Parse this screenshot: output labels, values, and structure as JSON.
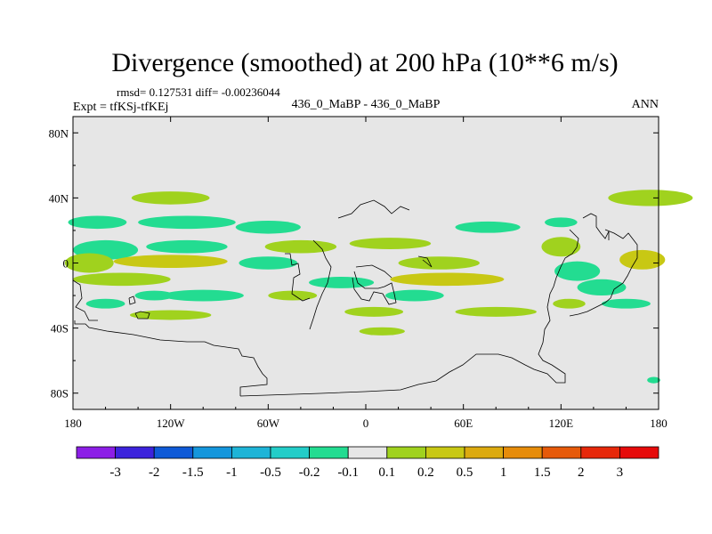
{
  "chart_data": {
    "type": "heatmap",
    "title": "Divergence (smoothed) at 200 hPa (10**6 m/s)",
    "stats_label": "rmsd= 0.127531  diff= -0.00236044",
    "left_label": "Expt = tfKSj-tfKEj",
    "center_label": "436_0_MaBP - 436_0_MaBP",
    "right_label": "ANN",
    "x_ticks": [
      "180",
      "120W",
      "60W",
      "0",
      "60E",
      "120E",
      "180"
    ],
    "y_ticks": [
      "80N",
      "40N",
      "0",
      "40S",
      "80S"
    ],
    "xlim": [
      -180,
      180
    ],
    "ylim": [
      -90,
      90
    ],
    "colorbar": {
      "colors": [
        "#8c1ee6",
        "#3c23dc",
        "#0f5ad7",
        "#1496dc",
        "#1eb4d7",
        "#23cdc8",
        "#23dc91",
        "#e6e6e6",
        "#a0d21e",
        "#c8c814",
        "#dcaa0f",
        "#e68c0a",
        "#e65a0a",
        "#e6280a",
        "#e60a0a"
      ],
      "labels": [
        "-3",
        "-2",
        "-1.5",
        "-1",
        "-0.5",
        "-0.2",
        "-0.1",
        "0.1",
        "0.2",
        "0.5",
        "1",
        "1.5",
        "2",
        "3"
      ]
    },
    "features": [
      {
        "lon": 175,
        "lat": 40,
        "rx": 26,
        "ry": 5,
        "color": "#a0d21e"
      },
      {
        "lon": -120,
        "lat": 40,
        "rx": 24,
        "ry": 4,
        "color": "#a0d21e"
      },
      {
        "lon": -165,
        "lat": 25,
        "rx": 18,
        "ry": 4,
        "color": "#23dc91"
      },
      {
        "lon": -110,
        "lat": 25,
        "rx": 30,
        "ry": 4,
        "color": "#23dc91"
      },
      {
        "lon": -60,
        "lat": 22,
        "rx": 20,
        "ry": 4,
        "color": "#23dc91"
      },
      {
        "lon": 75,
        "lat": 22,
        "rx": 20,
        "ry": 3.5,
        "color": "#23dc91"
      },
      {
        "lon": 120,
        "lat": 25,
        "rx": 10,
        "ry": 3,
        "color": "#23dc91"
      },
      {
        "lon": -40,
        "lat": 10,
        "rx": 22,
        "ry": 4,
        "color": "#a0d21e"
      },
      {
        "lon": 15,
        "lat": 12,
        "rx": 25,
        "ry": 3.5,
        "color": "#a0d21e"
      },
      {
        "lon": 120,
        "lat": 10,
        "rx": 12,
        "ry": 6,
        "color": "#a0d21e"
      },
      {
        "lon": -160,
        "lat": 8,
        "rx": 20,
        "ry": 6,
        "color": "#23dc91"
      },
      {
        "lon": -110,
        "lat": 10,
        "rx": 25,
        "ry": 4,
        "color": "#23dc91"
      },
      {
        "lon": -170,
        "lat": 0,
        "rx": 15,
        "ry": 6,
        "color": "#a0d21e"
      },
      {
        "lon": -120,
        "lat": 1,
        "rx": 35,
        "ry": 4,
        "color": "#c8c814"
      },
      {
        "lon": 45,
        "lat": 0,
        "rx": 25,
        "ry": 4,
        "color": "#a0d21e"
      },
      {
        "lon": 170,
        "lat": 2,
        "rx": 14,
        "ry": 6,
        "color": "#c8c814"
      },
      {
        "lon": -60,
        "lat": 0,
        "rx": 18,
        "ry": 4,
        "color": "#23dc91"
      },
      {
        "lon": -150,
        "lat": -10,
        "rx": 30,
        "ry": 4,
        "color": "#a0d21e"
      },
      {
        "lon": 50,
        "lat": -10,
        "rx": 35,
        "ry": 4,
        "color": "#c8c814"
      },
      {
        "lon": 130,
        "lat": -5,
        "rx": 14,
        "ry": 6,
        "color": "#23dc91"
      },
      {
        "lon": -15,
        "lat": -12,
        "rx": 20,
        "ry": 3.5,
        "color": "#23dc91"
      },
      {
        "lon": -100,
        "lat": -20,
        "rx": 25,
        "ry": 3.5,
        "color": "#23dc91"
      },
      {
        "lon": 30,
        "lat": -20,
        "rx": 18,
        "ry": 3.5,
        "color": "#23dc91"
      },
      {
        "lon": 145,
        "lat": -15,
        "rx": 15,
        "ry": 5,
        "color": "#23dc91"
      },
      {
        "lon": -130,
        "lat": -20,
        "rx": 12,
        "ry": 3,
        "color": "#23dc91"
      },
      {
        "lon": -160,
        "lat": -25,
        "rx": 12,
        "ry": 3,
        "color": "#23dc91"
      },
      {
        "lon": 160,
        "lat": -25,
        "rx": 15,
        "ry": 3,
        "color": "#23dc91"
      },
      {
        "lon": -45,
        "lat": -20,
        "rx": 15,
        "ry": 3,
        "color": "#a0d21e"
      },
      {
        "lon": 5,
        "lat": -30,
        "rx": 18,
        "ry": 3,
        "color": "#a0d21e"
      },
      {
        "lon": 80,
        "lat": -30,
        "rx": 25,
        "ry": 3,
        "color": "#a0d21e"
      },
      {
        "lon": 125,
        "lat": -25,
        "rx": 10,
        "ry": 3,
        "color": "#a0d21e"
      },
      {
        "lon": -120,
        "lat": -32,
        "rx": 25,
        "ry": 3,
        "color": "#a0d21e"
      },
      {
        "lon": 10,
        "lat": -42,
        "rx": 14,
        "ry": 2.5,
        "color": "#a0d21e"
      },
      {
        "lon": 177,
        "lat": -72,
        "rx": 4,
        "ry": 2,
        "color": "#23dc91"
      }
    ]
  }
}
